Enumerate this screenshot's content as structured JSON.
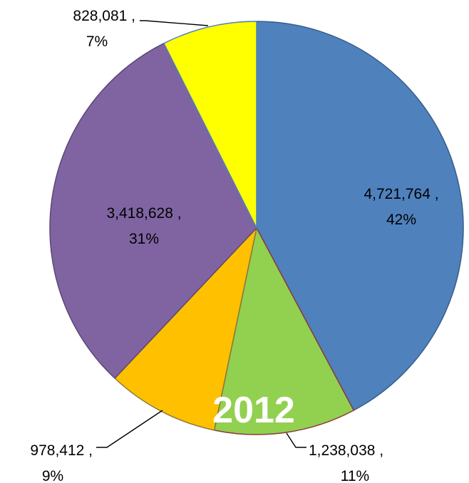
{
  "chart_data": {
    "type": "pie",
    "title": "2012",
    "legend": "none",
    "slices": [
      {
        "value": 4721764,
        "value_label": "4,721,764 ,",
        "percent_label": "42%",
        "color": "#4F81BD",
        "edge_color": "#385D8A"
      },
      {
        "value": 1238038,
        "value_label": "1,238,038 ,",
        "percent_label": "11%",
        "color": "#92D050",
        "edge_color": "#8B3A3A"
      },
      {
        "value": 978412,
        "value_label": "978,412 ,",
        "percent_label": "9%",
        "color": "#FFC000",
        "edge_color": "#8A7A3A"
      },
      {
        "value": 3418628,
        "value_label": "3,418,628 ,",
        "percent_label": "31%",
        "color": "#8064A2",
        "edge_color": "#5C4776"
      },
      {
        "value": 828081,
        "value_label": "828,081 ,",
        "percent_label": "7%",
        "color": "#FFFF00",
        "edge_color": "#4F81BD"
      }
    ]
  }
}
